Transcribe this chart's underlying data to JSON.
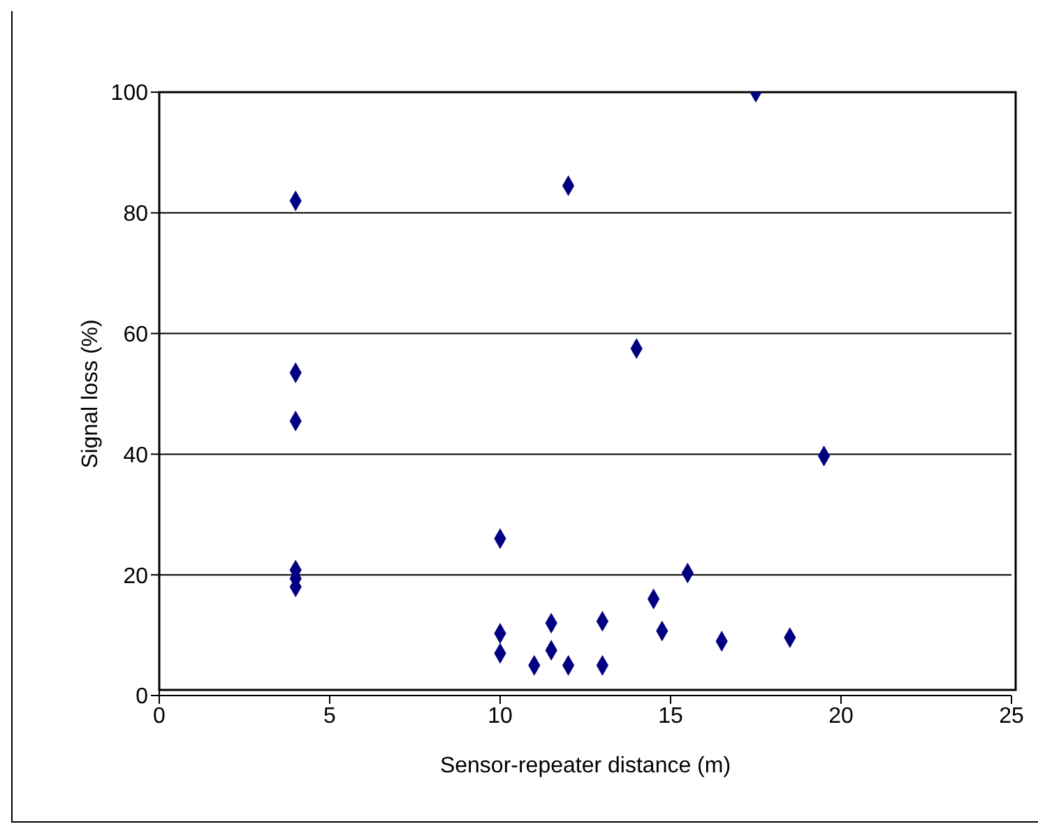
{
  "chart_data": {
    "type": "scatter",
    "xlabel": "Sensor-repeater distance (m)",
    "ylabel": "Signal loss (%)",
    "x": [
      4,
      4,
      4,
      4,
      4,
      4,
      10,
      10,
      10,
      11,
      11.5,
      11.5,
      12,
      12,
      13,
      13,
      14,
      14.5,
      14.75,
      15.5,
      16.5,
      17.5,
      18.5,
      19.5
    ],
    "series": [
      {
        "color": "#000080",
        "values": [
          82,
          53.5,
          45.5,
          20.8,
          19.4,
          18,
          26,
          10.3,
          7,
          5,
          12,
          7.5,
          84.5,
          5,
          12.3,
          5,
          57.5,
          16,
          10.7,
          20.3,
          9,
          100,
          9.6,
          39.7
        ]
      }
    ],
    "xlim": [
      0,
      25
    ],
    "xticks": [
      0,
      5,
      10,
      15,
      20,
      25
    ],
    "ylim": [
      0,
      100
    ],
    "yticks": [
      0,
      20,
      40,
      60,
      80,
      100
    ],
    "grid": "y",
    "marker": "diamond",
    "legend": false
  }
}
